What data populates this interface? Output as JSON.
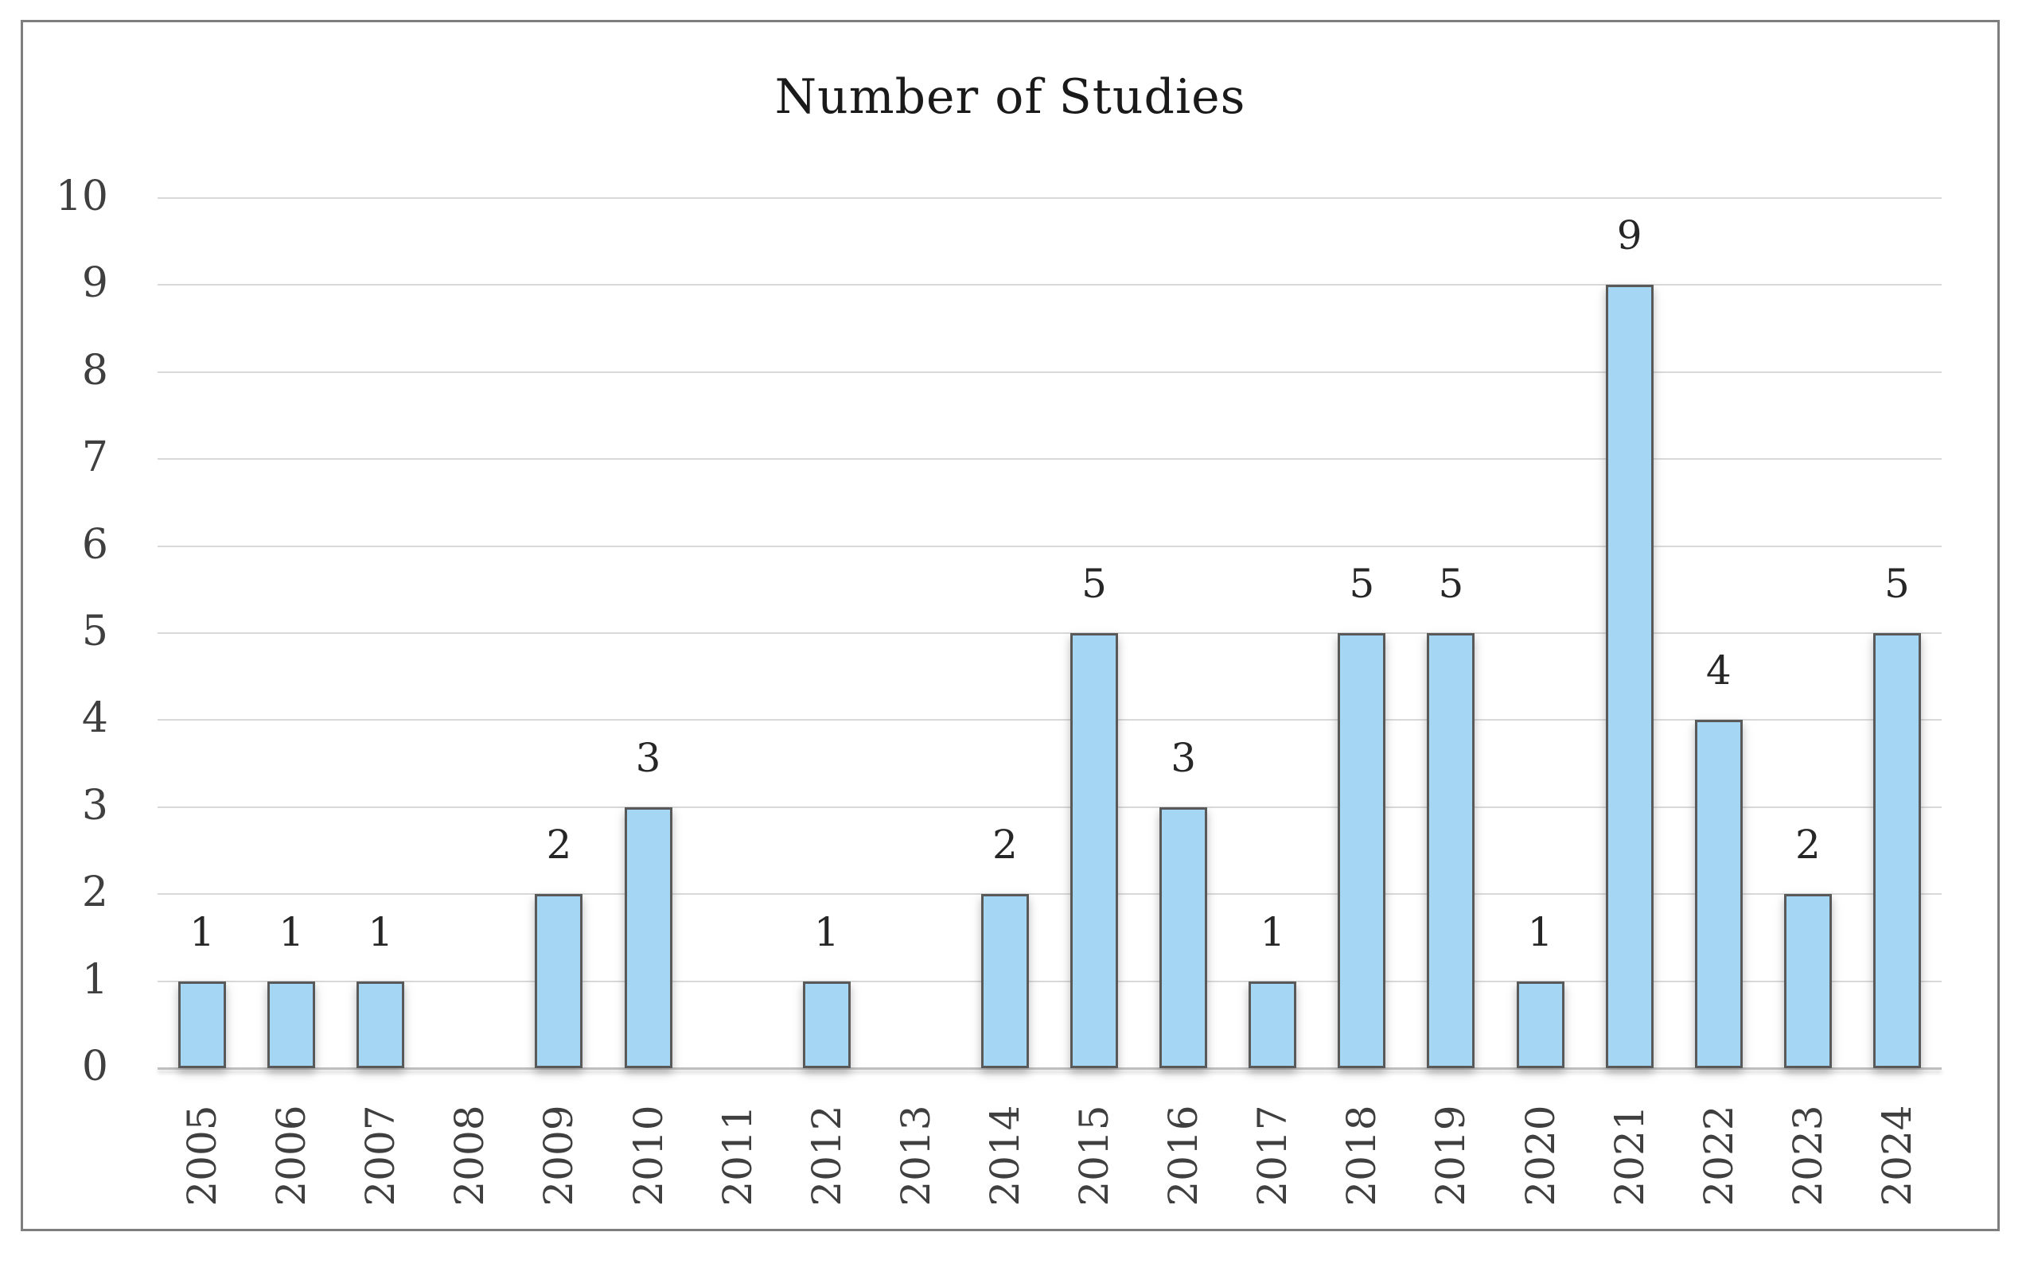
{
  "chart_data": {
    "type": "bar",
    "title": "Number of Studies",
    "categories": [
      "2005",
      "2006",
      "2007",
      "2008",
      "2009",
      "2010",
      "2011",
      "2012",
      "2013",
      "2014",
      "2015",
      "2016",
      "2017",
      "2018",
      "2019",
      "2020",
      "2021",
      "2022",
      "2023",
      "2024"
    ],
    "values": [
      1,
      1,
      1,
      0,
      2,
      3,
      0,
      1,
      0,
      2,
      5,
      3,
      1,
      5,
      5,
      1,
      9,
      4,
      2,
      5
    ],
    "xlabel": "",
    "ylabel": "",
    "ylim": [
      0,
      10
    ],
    "y_ticks": [
      0,
      1,
      2,
      3,
      4,
      5,
      6,
      7,
      8,
      9,
      10
    ],
    "grid": "horizontal",
    "legend": "none",
    "data_labels": "above bars, zero values unlabeled",
    "colors": {
      "bar_fill": "#A5D7F5",
      "bar_border": "#595959",
      "gridline": "#D9D9D9",
      "axis_line": "#BFBFBF",
      "axis_text": "#3F3F3F",
      "value_label_text": "#262626",
      "title_text": "#1A1A1A",
      "frame_border": "#7E7E7E",
      "background": "#FFFFFF"
    }
  }
}
